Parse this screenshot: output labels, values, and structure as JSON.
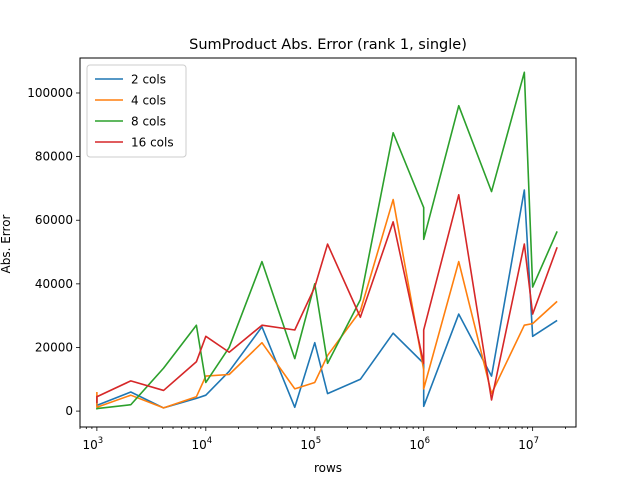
{
  "chart_data": {
    "type": "line",
    "title": "SumProduct Abs. Error (rank 1, single)",
    "xlabel": "rows",
    "ylabel": "Abs. Error",
    "xscale": "log",
    "xlim": [
      700,
      25000000
    ],
    "ylim": [
      -5000,
      111000
    ],
    "x_tick_labels": [
      {
        "value": 1000,
        "base": "10",
        "exp": "3"
      },
      {
        "value": 10000,
        "base": "10",
        "exp": "4"
      },
      {
        "value": 100000,
        "base": "10",
        "exp": "5"
      },
      {
        "value": 1000000,
        "base": "10",
        "exp": "6"
      },
      {
        "value": 10000000,
        "base": "10",
        "exp": "7"
      }
    ],
    "y_ticks": [
      0,
      20000,
      40000,
      60000,
      80000,
      100000
    ],
    "y_tick_labels": [
      "0",
      "20000",
      "40000",
      "60000",
      "80000",
      "100000"
    ],
    "grid": false,
    "legend_position": "top-left",
    "x": [
      1000,
      1000,
      2048,
      4096,
      8192,
      10000,
      16384,
      32768,
      65536,
      100000,
      131072,
      262144,
      524288,
      1000000,
      1000000,
      2097152,
      4194304,
      8388608,
      10000000,
      16777216
    ],
    "series": [
      {
        "name": "2 cols",
        "color": "#1f77b4",
        "values": [
          5000,
          1800,
          6000,
          1000,
          4000,
          5000,
          12500,
          26500,
          1200,
          21500,
          5500,
          10000,
          24500,
          15000,
          1500,
          30500,
          11000,
          69500,
          23500,
          28500
        ]
      },
      {
        "name": "4 cols",
        "color": "#ff7f0e",
        "values": [
          6000,
          1200,
          5000,
          1000,
          4500,
          11000,
          11500,
          21500,
          7000,
          9000,
          17500,
          31500,
          66500,
          13000,
          7000,
          47000,
          5500,
          27000,
          27500,
          34500
        ]
      },
      {
        "name": "8 cols",
        "color": "#2ca02c",
        "values": [
          500,
          800,
          2000,
          13500,
          27000,
          9000,
          20000,
          47000,
          16500,
          40000,
          15000,
          35000,
          87500,
          64000,
          54000,
          96000,
          69000,
          106500,
          39000,
          56500
        ]
      },
      {
        "name": "16 cols",
        "color": "#d62728",
        "values": [
          2500,
          4500,
          9500,
          6500,
          15500,
          23500,
          18500,
          27000,
          25500,
          39000,
          52500,
          29500,
          59500,
          15000,
          25500,
          68000,
          3500,
          52500,
          30500,
          51500
        ]
      }
    ]
  }
}
